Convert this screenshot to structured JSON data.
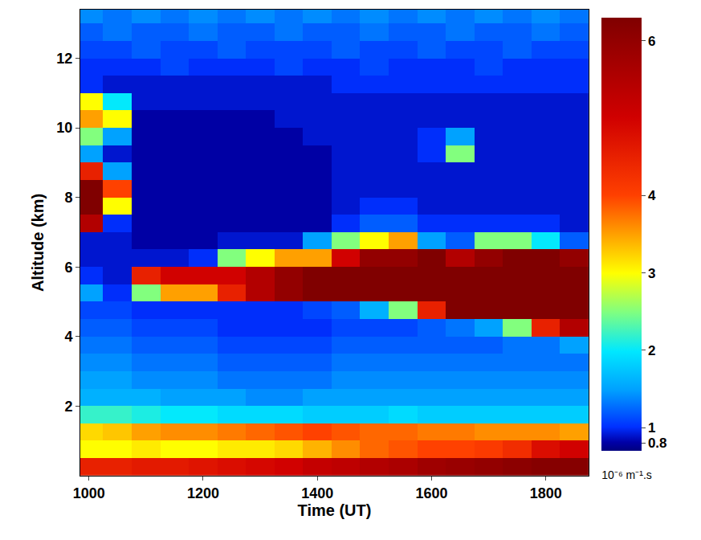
{
  "chart_data": {
    "type": "heatmap",
    "x_label": "Time (UT)",
    "y_label": "Altitude (km)",
    "x": [
      1000,
      1050,
      1100,
      1150,
      1200,
      1250,
      1300,
      1350,
      1400,
      1450,
      1500,
      1550,
      1600,
      1650,
      1700,
      1750,
      1800,
      1850
    ],
    "y": [
      0.25,
      0.75,
      1.25,
      1.75,
      2.25,
      2.75,
      3.25,
      3.75,
      4.25,
      4.75,
      5.25,
      5.75,
      6.25,
      6.75,
      7.25,
      7.75,
      8.25,
      8.75,
      9.25,
      9.75,
      10.25,
      10.75,
      11.25,
      11.75,
      12.25,
      12.75,
      13.25
    ],
    "z": [
      [
        4.5,
        4.5,
        4.6,
        4.6,
        4.7,
        4.8,
        4.9,
        5.0,
        5.2,
        5.3,
        5.5,
        5.6,
        5.8,
        5.9,
        6.0,
        6.1,
        6.2,
        6.2
      ],
      [
        3.0,
        3.0,
        3.1,
        3.0,
        3.0,
        3.1,
        3.1,
        3.2,
        3.4,
        3.6,
        3.8,
        3.9,
        4.0,
        4.0,
        4.1,
        4.3,
        4.8,
        5.0
      ],
      [
        3.2,
        3.3,
        3.5,
        3.6,
        3.6,
        3.7,
        3.8,
        3.9,
        4.0,
        3.9,
        3.8,
        3.8,
        3.7,
        3.7,
        3.6,
        3.6,
        3.6,
        3.5
      ],
      [
        2.2,
        2.2,
        2.1,
        2.0,
        2.0,
        1.9,
        1.9,
        1.9,
        1.8,
        1.8,
        1.8,
        1.9,
        1.8,
        1.8,
        1.8,
        1.8,
        1.8,
        1.8
      ],
      [
        1.6,
        1.6,
        1.6,
        1.5,
        1.5,
        1.5,
        1.4,
        1.4,
        1.5,
        1.5,
        1.5,
        1.5,
        1.5,
        1.5,
        1.5,
        1.5,
        1.5,
        1.5
      ],
      [
        1.5,
        1.5,
        1.4,
        1.4,
        1.4,
        1.3,
        1.3,
        1.3,
        1.3,
        1.4,
        1.4,
        1.4,
        1.4,
        1.4,
        1.4,
        1.4,
        1.4,
        1.4
      ],
      [
        1.4,
        1.4,
        1.3,
        1.3,
        1.3,
        1.2,
        1.2,
        1.2,
        1.2,
        1.3,
        1.3,
        1.3,
        1.3,
        1.3,
        1.3,
        1.3,
        1.3,
        1.3
      ],
      [
        1.3,
        1.3,
        1.2,
        1.2,
        1.2,
        1.1,
        1.1,
        1.1,
        1.1,
        1.2,
        1.2,
        1.2,
        1.2,
        1.2,
        1.2,
        1.3,
        1.3,
        1.5
      ],
      [
        1.2,
        1.2,
        1.1,
        1.1,
        1.1,
        1.0,
        1.0,
        1.0,
        1.0,
        1.1,
        1.1,
        1.1,
        1.2,
        1.3,
        1.5,
        2.5,
        4.5,
        5.5
      ],
      [
        1.1,
        1.1,
        1.0,
        1.0,
        1.0,
        1.0,
        1.0,
        1.0,
        1.1,
        1.2,
        1.6,
        2.5,
        4.5,
        6.3,
        6.3,
        6.3,
        6.3,
        6.3
      ],
      [
        1.5,
        1.0,
        2.5,
        3.5,
        3.5,
        4.5,
        5.5,
        6.0,
        6.3,
        6.3,
        6.3,
        6.3,
        6.3,
        6.3,
        6.3,
        6.3,
        6.3,
        6.3
      ],
      [
        1.0,
        0.9,
        4.5,
        5.0,
        5.0,
        5.0,
        5.5,
        6.0,
        6.3,
        6.3,
        6.3,
        6.3,
        6.3,
        6.3,
        6.3,
        6.3,
        6.3,
        6.3
      ],
      [
        0.9,
        0.9,
        0.9,
        0.9,
        1.0,
        2.5,
        3.0,
        3.5,
        3.5,
        5.0,
        6.0,
        6.0,
        6.3,
        5.5,
        6.0,
        6.3,
        6.3,
        6.0
      ],
      [
        0.9,
        0.9,
        0.8,
        0.8,
        0.8,
        0.9,
        0.9,
        0.9,
        1.5,
        2.5,
        3.0,
        3.5,
        1.5,
        1.2,
        2.5,
        2.5,
        2.0,
        1.2
      ],
      [
        5.5,
        1.0,
        0.8,
        0.8,
        0.8,
        0.8,
        0.8,
        0.8,
        0.8,
        1.0,
        1.2,
        1.2,
        1.0,
        1.0,
        1.0,
        1.0,
        1.0,
        0.9
      ],
      [
        6.3,
        3.0,
        0.8,
        0.8,
        0.8,
        0.8,
        0.8,
        0.8,
        0.8,
        0.9,
        1.0,
        1.0,
        0.9,
        0.9,
        0.9,
        0.9,
        0.9,
        0.9
      ],
      [
        6.3,
        4.0,
        0.8,
        0.8,
        0.8,
        0.8,
        0.8,
        0.8,
        0.8,
        0.9,
        0.9,
        0.9,
        0.9,
        0.9,
        0.9,
        0.9,
        0.9,
        0.9
      ],
      [
        4.5,
        1.5,
        0.8,
        0.8,
        0.8,
        0.8,
        0.8,
        0.8,
        0.8,
        0.9,
        0.9,
        0.9,
        0.9,
        0.9,
        0.9,
        0.9,
        0.9,
        0.9
      ],
      [
        1.5,
        0.9,
        0.8,
        0.8,
        0.8,
        0.8,
        0.8,
        0.8,
        0.8,
        0.9,
        0.9,
        0.9,
        1.0,
        2.5,
        0.9,
        0.9,
        0.9,
        0.9
      ],
      [
        2.5,
        1.5,
        0.8,
        0.8,
        0.8,
        0.8,
        0.8,
        0.8,
        0.9,
        0.9,
        0.9,
        0.9,
        1.0,
        1.5,
        0.9,
        0.9,
        0.9,
        0.9
      ],
      [
        3.5,
        3.0,
        0.8,
        0.8,
        0.8,
        0.8,
        0.8,
        0.9,
        0.9,
        0.9,
        0.9,
        0.9,
        0.9,
        0.9,
        0.9,
        0.9,
        0.9,
        0.9
      ],
      [
        3.0,
        2.0,
        0.9,
        0.9,
        0.9,
        0.9,
        0.9,
        0.9,
        0.9,
        0.9,
        0.9,
        0.9,
        0.9,
        0.9,
        0.9,
        0.9,
        0.9,
        0.9
      ],
      [
        1.0,
        0.9,
        0.9,
        0.9,
        0.9,
        0.9,
        0.9,
        0.9,
        0.9,
        1.0,
        1.0,
        1.0,
        1.0,
        1.0,
        1.0,
        1.0,
        1.0,
        1.0
      ],
      [
        1.0,
        1.0,
        1.0,
        1.1,
        1.0,
        1.0,
        1.0,
        1.1,
        1.0,
        1.0,
        1.1,
        1.0,
        1.0,
        1.0,
        1.1,
        1.0,
        1.0,
        1.0
      ],
      [
        1.1,
        1.1,
        1.2,
        1.1,
        1.1,
        1.2,
        1.1,
        1.1,
        1.1,
        1.2,
        1.1,
        1.1,
        1.2,
        1.1,
        1.1,
        1.2,
        1.1,
        1.1
      ],
      [
        1.2,
        1.3,
        1.2,
        1.2,
        1.3,
        1.2,
        1.2,
        1.3,
        1.2,
        1.2,
        1.3,
        1.2,
        1.2,
        1.3,
        1.2,
        1.2,
        1.3,
        1.2
      ],
      [
        1.4,
        1.3,
        1.4,
        1.3,
        1.4,
        1.3,
        1.4,
        1.3,
        1.4,
        1.3,
        1.4,
        1.3,
        1.4,
        1.3,
        1.4,
        1.3,
        1.4,
        1.3
      ]
    ],
    "xlim": [
      985,
      1875
    ],
    "xticks": [
      1000,
      1200,
      1400,
      1600,
      1800
    ],
    "ylim": [
      0,
      13.4
    ],
    "yticks": [
      2,
      4,
      6,
      8,
      10,
      12
    ],
    "colorbar": {
      "range": [
        0.7,
        6.3
      ],
      "ticks": [
        0.8,
        1,
        2,
        3,
        4,
        6
      ],
      "label": "10⁻⁶ m⁻¹.s"
    }
  }
}
